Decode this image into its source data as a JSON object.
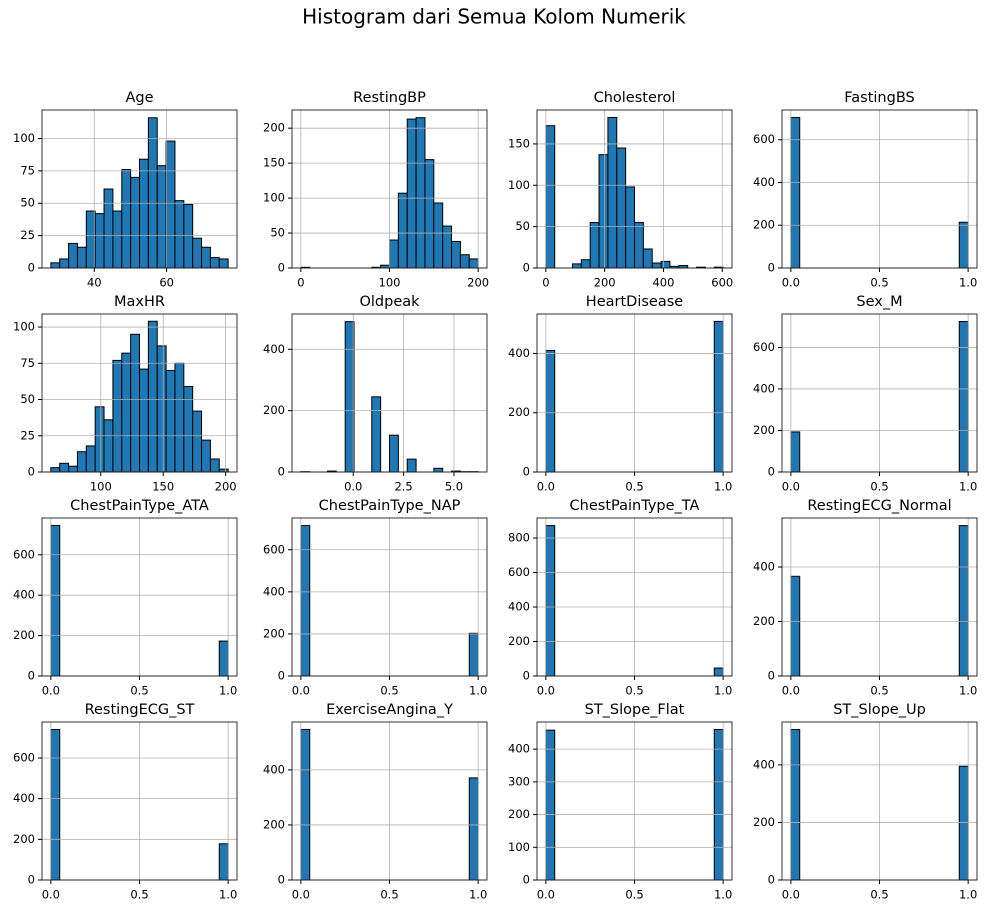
{
  "title": "Histogram dari Semua Kolom Numerik",
  "chart_data": [
    {
      "type": "histogram",
      "title": "Age",
      "bins": [
        28,
        30.45,
        32.9,
        35.35,
        37.8,
        40.25,
        42.7,
        45.15,
        47.6,
        50.05,
        52.5,
        54.95,
        57.4,
        59.85,
        62.3,
        64.75,
        67.2,
        69.65,
        72.1,
        74.55,
        77
      ],
      "values": [
        4,
        7,
        19,
        16,
        44,
        42,
        61,
        44,
        76,
        70,
        84,
        116,
        79,
        98,
        52,
        49,
        23,
        16,
        8,
        7
      ],
      "xlim": [
        25.55,
        79.45
      ],
      "xticks": [
        40,
        60
      ],
      "ylim": [
        0,
        122
      ],
      "yticks": [
        0,
        25,
        50,
        75,
        100
      ],
      "color": "#1f77b4",
      "grid": true
    },
    {
      "type": "histogram",
      "title": "RestingBP",
      "bins": [
        0,
        10,
        20,
        30,
        40,
        50,
        60,
        70,
        80,
        90,
        100,
        110,
        120,
        130,
        140,
        150,
        160,
        170,
        180,
        190,
        200
      ],
      "values": [
        1,
        0,
        0,
        0,
        0,
        0,
        0,
        0,
        1,
        4,
        40,
        107,
        213,
        215,
        155,
        93,
        60,
        38,
        19,
        13
      ],
      "xlim": [
        -10,
        210
      ],
      "xticks": [
        0,
        100,
        200
      ],
      "ylim": [
        0,
        226
      ],
      "yticks": [
        0,
        50,
        100,
        150,
        200
      ],
      "color": "#1f77b4",
      "grid": true
    },
    {
      "type": "histogram",
      "title": "Cholesterol",
      "bins": [
        0,
        30.15,
        60.3,
        90.45,
        120.6,
        150.75,
        180.9,
        211.05,
        241.2,
        271.35,
        301.5,
        331.65,
        361.8,
        391.95,
        422.1,
        452.25,
        482.4,
        512.55,
        542.7,
        572.85,
        603
      ],
      "values": [
        172,
        0,
        0,
        5,
        10,
        55,
        137,
        182,
        145,
        98,
        55,
        23,
        6,
        8,
        2,
        3,
        0,
        1,
        0,
        1
      ],
      "xlim": [
        -30.15,
        633.15
      ],
      "xticks": [
        0,
        200,
        400,
        600
      ],
      "ylim": [
        0,
        191
      ],
      "yticks": [
        0,
        50,
        100,
        150
      ],
      "color": "#1f77b4",
      "grid": true
    },
    {
      "type": "histogram",
      "title": "FastingBS",
      "bins": [
        0,
        0.05,
        0.1,
        0.15,
        0.2,
        0.25,
        0.3,
        0.35,
        0.4,
        0.45,
        0.5,
        0.55,
        0.6,
        0.65,
        0.7,
        0.75,
        0.8,
        0.85,
        0.9,
        0.95,
        1
      ],
      "values": [
        704,
        0,
        0,
        0,
        0,
        0,
        0,
        0,
        0,
        0,
        0,
        0,
        0,
        0,
        0,
        0,
        0,
        0,
        0,
        214
      ],
      "xlim": [
        -0.05,
        1.05
      ],
      "xticks": [
        {
          "value": 0,
          "label": "0.0"
        },
        0.5,
        {
          "value": 1,
          "label": "1.0"
        }
      ],
      "ylim": [
        0,
        739
      ],
      "yticks": [
        0,
        200,
        400,
        600
      ],
      "color": "#1f77b4",
      "grid": true
    },
    {
      "type": "histogram",
      "title": "MaxHR",
      "bins": [
        60,
        67.1,
        74.2,
        81.3,
        88.4,
        95.5,
        102.6,
        109.7,
        116.8,
        123.9,
        131,
        138.1,
        145.2,
        152.3,
        159.4,
        166.5,
        173.6,
        180.7,
        187.8,
        194.9,
        202
      ],
      "values": [
        3,
        6,
        4,
        14,
        18,
        45,
        36,
        77,
        82,
        95,
        71,
        104,
        87,
        70,
        75,
        59,
        42,
        22,
        9,
        2
      ],
      "xlim": [
        52.9,
        209.1
      ],
      "xticks": [
        100,
        150,
        200
      ],
      "ylim": [
        0,
        109
      ],
      "yticks": [
        0,
        25,
        50,
        75,
        100
      ],
      "color": "#1f77b4",
      "grid": true
    },
    {
      "type": "histogram",
      "title": "Oldpeak",
      "bins": [
        -2.6,
        -2.16,
        -1.72,
        -1.28,
        -0.84,
        -0.4,
        0.04,
        0.48,
        0.92,
        1.36,
        1.8,
        2.24,
        2.68,
        3.12,
        3.56,
        4.0,
        4.44,
        4.88,
        5.32,
        5.76,
        6.2
      ],
      "values": [
        1,
        0,
        0,
        3,
        0,
        490,
        0,
        0,
        245,
        0,
        120,
        0,
        42,
        0,
        0,
        12,
        0,
        3,
        1,
        1
      ],
      "xlim": [
        -3.04,
        6.64
      ],
      "xticks": [
        {
          "value": 0,
          "label": "0.0"
        },
        2.5,
        {
          "value": 5,
          "label": "5.0"
        }
      ],
      "ylim": [
        0,
        515
      ],
      "yticks": [
        0,
        200,
        400
      ],
      "color": "#1f77b4",
      "grid": true
    },
    {
      "type": "histogram",
      "title": "HeartDisease",
      "bins": [
        0,
        0.05,
        0.1,
        0.15,
        0.2,
        0.25,
        0.3,
        0.35,
        0.4,
        0.45,
        0.5,
        0.55,
        0.6,
        0.65,
        0.7,
        0.75,
        0.8,
        0.85,
        0.9,
        0.95,
        1
      ],
      "values": [
        410,
        0,
        0,
        0,
        0,
        0,
        0,
        0,
        0,
        0,
        0,
        0,
        0,
        0,
        0,
        0,
        0,
        0,
        0,
        508
      ],
      "xlim": [
        -0.05,
        1.05
      ],
      "xticks": [
        {
          "value": 0,
          "label": "0.0"
        },
        0.5,
        {
          "value": 1,
          "label": "1.0"
        }
      ],
      "ylim": [
        0,
        533
      ],
      "yticks": [
        0,
        200,
        400
      ],
      "color": "#1f77b4",
      "grid": true
    },
    {
      "type": "histogram",
      "title": "Sex_M",
      "bins": [
        0,
        0.05,
        0.1,
        0.15,
        0.2,
        0.25,
        0.3,
        0.35,
        0.4,
        0.45,
        0.5,
        0.55,
        0.6,
        0.65,
        0.7,
        0.75,
        0.8,
        0.85,
        0.9,
        0.95,
        1
      ],
      "values": [
        193,
        0,
        0,
        0,
        0,
        0,
        0,
        0,
        0,
        0,
        0,
        0,
        0,
        0,
        0,
        0,
        0,
        0,
        0,
        725
      ],
      "xlim": [
        -0.05,
        1.05
      ],
      "xticks": [
        {
          "value": 0,
          "label": "0.0"
        },
        0.5,
        {
          "value": 1,
          "label": "1.0"
        }
      ],
      "ylim": [
        0,
        761
      ],
      "yticks": [
        0,
        200,
        400,
        600
      ],
      "color": "#1f77b4",
      "grid": true
    },
    {
      "type": "histogram",
      "title": "ChestPainType_ATA",
      "bins": [
        0,
        0.05,
        0.1,
        0.15,
        0.2,
        0.25,
        0.3,
        0.35,
        0.4,
        0.45,
        0.5,
        0.55,
        0.6,
        0.65,
        0.7,
        0.75,
        0.8,
        0.85,
        0.9,
        0.95,
        1
      ],
      "values": [
        745,
        0,
        0,
        0,
        0,
        0,
        0,
        0,
        0,
        0,
        0,
        0,
        0,
        0,
        0,
        0,
        0,
        0,
        0,
        173
      ],
      "xlim": [
        -0.05,
        1.05
      ],
      "xticks": [
        {
          "value": 0,
          "label": "0.0"
        },
        0.5,
        {
          "value": 1,
          "label": "1.0"
        }
      ],
      "ylim": [
        0,
        782
      ],
      "yticks": [
        0,
        200,
        400,
        600
      ],
      "color": "#1f77b4",
      "grid": true
    },
    {
      "type": "histogram",
      "title": "ChestPainType_NAP",
      "bins": [
        0,
        0.05,
        0.1,
        0.15,
        0.2,
        0.25,
        0.3,
        0.35,
        0.4,
        0.45,
        0.5,
        0.55,
        0.6,
        0.65,
        0.7,
        0.75,
        0.8,
        0.85,
        0.9,
        0.95,
        1
      ],
      "values": [
        715,
        0,
        0,
        0,
        0,
        0,
        0,
        0,
        0,
        0,
        0,
        0,
        0,
        0,
        0,
        0,
        0,
        0,
        0,
        203
      ],
      "xlim": [
        -0.05,
        1.05
      ],
      "xticks": [
        {
          "value": 0,
          "label": "0.0"
        },
        0.5,
        {
          "value": 1,
          "label": "1.0"
        }
      ],
      "ylim": [
        0,
        751
      ],
      "yticks": [
        0,
        200,
        400,
        600
      ],
      "color": "#1f77b4",
      "grid": true
    },
    {
      "type": "histogram",
      "title": "ChestPainType_TA",
      "bins": [
        0,
        0.05,
        0.1,
        0.15,
        0.2,
        0.25,
        0.3,
        0.35,
        0.4,
        0.45,
        0.5,
        0.55,
        0.6,
        0.65,
        0.7,
        0.75,
        0.8,
        0.85,
        0.9,
        0.95,
        1
      ],
      "values": [
        872,
        0,
        0,
        0,
        0,
        0,
        0,
        0,
        0,
        0,
        0,
        0,
        0,
        0,
        0,
        0,
        0,
        0,
        0,
        46
      ],
      "xlim": [
        -0.05,
        1.05
      ],
      "xticks": [
        {
          "value": 0,
          "label": "0.0"
        },
        0.5,
        {
          "value": 1,
          "label": "1.0"
        }
      ],
      "ylim": [
        0,
        916
      ],
      "yticks": [
        0,
        200,
        400,
        600,
        800
      ],
      "color": "#1f77b4",
      "grid": true
    },
    {
      "type": "histogram",
      "title": "RestingECG_Normal",
      "bins": [
        0,
        0.05,
        0.1,
        0.15,
        0.2,
        0.25,
        0.3,
        0.35,
        0.4,
        0.45,
        0.5,
        0.55,
        0.6,
        0.65,
        0.7,
        0.75,
        0.8,
        0.85,
        0.9,
        0.95,
        1
      ],
      "values": [
        366,
        0,
        0,
        0,
        0,
        0,
        0,
        0,
        0,
        0,
        0,
        0,
        0,
        0,
        0,
        0,
        0,
        0,
        0,
        552
      ],
      "xlim": [
        -0.05,
        1.05
      ],
      "xticks": [
        {
          "value": 0,
          "label": "0.0"
        },
        0.5,
        {
          "value": 1,
          "label": "1.0"
        }
      ],
      "ylim": [
        0,
        580
      ],
      "yticks": [
        0,
        200,
        400
      ],
      "color": "#1f77b4",
      "grid": true
    },
    {
      "type": "histogram",
      "title": "RestingECG_ST",
      "bins": [
        0,
        0.05,
        0.1,
        0.15,
        0.2,
        0.25,
        0.3,
        0.35,
        0.4,
        0.45,
        0.5,
        0.55,
        0.6,
        0.65,
        0.7,
        0.75,
        0.8,
        0.85,
        0.9,
        0.95,
        1
      ],
      "values": [
        740,
        0,
        0,
        0,
        0,
        0,
        0,
        0,
        0,
        0,
        0,
        0,
        0,
        0,
        0,
        0,
        0,
        0,
        0,
        178
      ],
      "xlim": [
        -0.05,
        1.05
      ],
      "xticks": [
        {
          "value": 0,
          "label": "0.0"
        },
        0.5,
        {
          "value": 1,
          "label": "1.0"
        }
      ],
      "ylim": [
        0,
        777
      ],
      "yticks": [
        0,
        200,
        400,
        600
      ],
      "color": "#1f77b4",
      "grid": true
    },
    {
      "type": "histogram",
      "title": "ExerciseAngina_Y",
      "bins": [
        0,
        0.05,
        0.1,
        0.15,
        0.2,
        0.25,
        0.3,
        0.35,
        0.4,
        0.45,
        0.5,
        0.55,
        0.6,
        0.65,
        0.7,
        0.75,
        0.8,
        0.85,
        0.9,
        0.95,
        1
      ],
      "values": [
        547,
        0,
        0,
        0,
        0,
        0,
        0,
        0,
        0,
        0,
        0,
        0,
        0,
        0,
        0,
        0,
        0,
        0,
        0,
        371
      ],
      "xlim": [
        -0.05,
        1.05
      ],
      "xticks": [
        {
          "value": 0,
          "label": "0.0"
        },
        0.5,
        {
          "value": 1,
          "label": "1.0"
        }
      ],
      "ylim": [
        0,
        574
      ],
      "yticks": [
        0,
        200,
        400
      ],
      "color": "#1f77b4",
      "grid": true
    },
    {
      "type": "histogram",
      "title": "ST_Slope_Flat",
      "bins": [
        0,
        0.05,
        0.1,
        0.15,
        0.2,
        0.25,
        0.3,
        0.35,
        0.4,
        0.45,
        0.5,
        0.55,
        0.6,
        0.65,
        0.7,
        0.75,
        0.8,
        0.85,
        0.9,
        0.95,
        1
      ],
      "values": [
        458,
        0,
        0,
        0,
        0,
        0,
        0,
        0,
        0,
        0,
        0,
        0,
        0,
        0,
        0,
        0,
        0,
        0,
        0,
        460
      ],
      "xlim": [
        -0.05,
        1.05
      ],
      "xticks": [
        {
          "value": 0,
          "label": "0.0"
        },
        0.5,
        {
          "value": 1,
          "label": "1.0"
        }
      ],
      "ylim": [
        0,
        483
      ],
      "yticks": [
        0,
        100,
        200,
        300,
        400
      ],
      "color": "#1f77b4",
      "grid": true
    },
    {
      "type": "histogram",
      "title": "ST_Slope_Up",
      "bins": [
        0,
        0.05,
        0.1,
        0.15,
        0.2,
        0.25,
        0.3,
        0.35,
        0.4,
        0.45,
        0.5,
        0.55,
        0.6,
        0.65,
        0.7,
        0.75,
        0.8,
        0.85,
        0.9,
        0.95,
        1
      ],
      "values": [
        523,
        0,
        0,
        0,
        0,
        0,
        0,
        0,
        0,
        0,
        0,
        0,
        0,
        0,
        0,
        0,
        0,
        0,
        0,
        395
      ],
      "xlim": [
        -0.05,
        1.05
      ],
      "xticks": [
        {
          "value": 0,
          "label": "0.0"
        },
        0.5,
        {
          "value": 1,
          "label": "1.0"
        }
      ],
      "ylim": [
        0,
        549
      ],
      "yticks": [
        0,
        200,
        400
      ],
      "color": "#1f77b4",
      "grid": true
    }
  ]
}
